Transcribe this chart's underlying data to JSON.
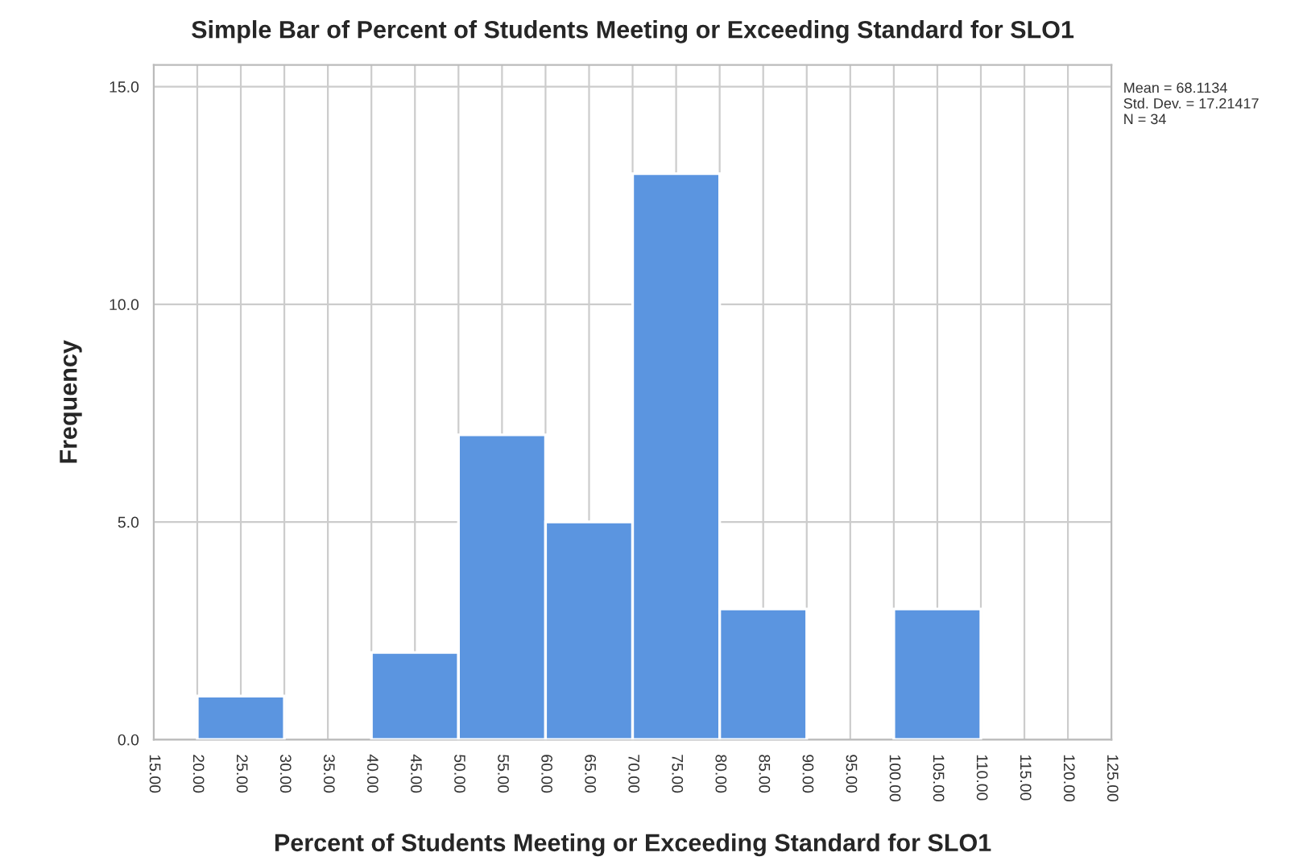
{
  "chart_data": {
    "type": "histogram",
    "title": "Simple Bar of Percent of Students Meeting or Exceeding Standard for SLO1",
    "xlabel": "Percent of Students Meeting or Exceeding Standard for SLO1",
    "ylabel": "Frequency",
    "bins": [
      20,
      30,
      40,
      50,
      60,
      70,
      80,
      90,
      100,
      110
    ],
    "values": [
      1,
      0,
      2,
      7,
      5,
      13,
      3,
      0,
      3
    ],
    "color": "#5b95e0",
    "xlim": [
      15,
      125
    ],
    "xticks": [
      {
        "value": 15,
        "label": "15.00"
      },
      {
        "value": 20,
        "label": "20.00"
      },
      {
        "value": 25,
        "label": "25.00"
      },
      {
        "value": 30,
        "label": "30.00"
      },
      {
        "value": 35,
        "label": "35.00"
      },
      {
        "value": 40,
        "label": "40.00"
      },
      {
        "value": 45,
        "label": "45.00"
      },
      {
        "value": 50,
        "label": "50.00"
      },
      {
        "value": 55,
        "label": "55.00"
      },
      {
        "value": 60,
        "label": "60.00"
      },
      {
        "value": 65,
        "label": "65.00"
      },
      {
        "value": 70,
        "label": "70.00"
      },
      {
        "value": 75,
        "label": "75.00"
      },
      {
        "value": 80,
        "label": "80.00"
      },
      {
        "value": 85,
        "label": "85.00"
      },
      {
        "value": 90,
        "label": "90.00"
      },
      {
        "value": 95,
        "label": "95.00"
      },
      {
        "value": 100,
        "label": "100.00"
      },
      {
        "value": 105,
        "label": "105.00"
      },
      {
        "value": 110,
        "label": "110.00"
      },
      {
        "value": 115,
        "label": "115.00"
      },
      {
        "value": 120,
        "label": "120.00"
      },
      {
        "value": 125,
        "label": "125.00"
      }
    ],
    "ylim": [
      0,
      15.5
    ],
    "yticks": [
      {
        "value": 0,
        "label": "0.0"
      },
      {
        "value": 5,
        "label": "5.0"
      },
      {
        "value": 10,
        "label": "10.0"
      },
      {
        "value": 15,
        "label": "15.0"
      }
    ],
    "grid": true,
    "annotations": [
      "Mean = 68.1134\nStd. Dev. = 17.21417\nN = 34"
    ]
  }
}
